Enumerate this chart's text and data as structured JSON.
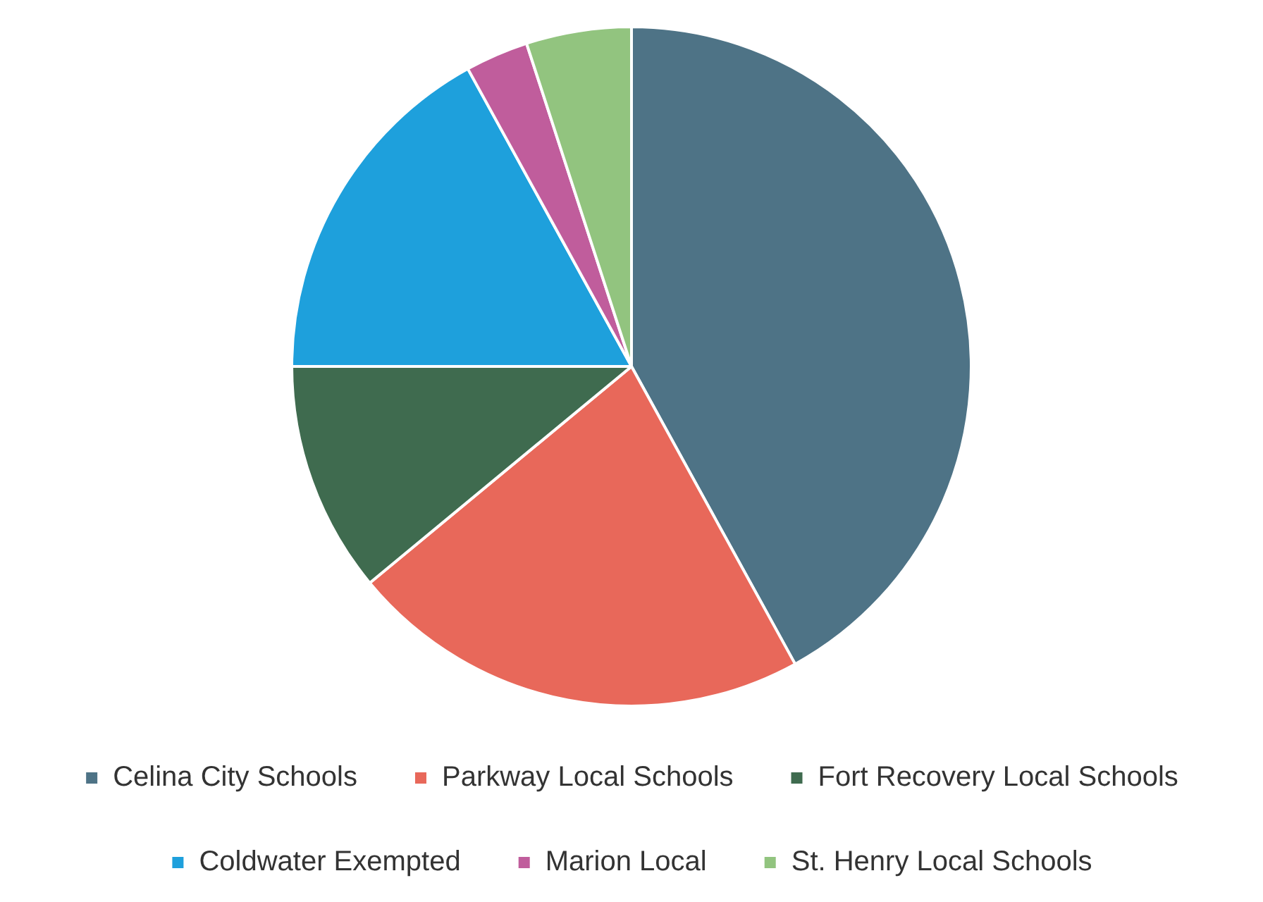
{
  "chart_data": {
    "type": "pie",
    "categories": [
      "Celina City Schools",
      "Parkway Local Schools",
      "Fort Recovery Local Schools",
      "Coldwater Exempted",
      "Marion Local",
      "St. Henry Local Schools"
    ],
    "values": [
      42,
      22,
      11,
      17,
      3,
      5
    ],
    "colors": [
      "#4e7386",
      "#e8685a",
      "#3f6b4f",
      "#1ea0dc",
      "#c05d9c",
      "#92c47f"
    ],
    "legend": "bottom"
  }
}
